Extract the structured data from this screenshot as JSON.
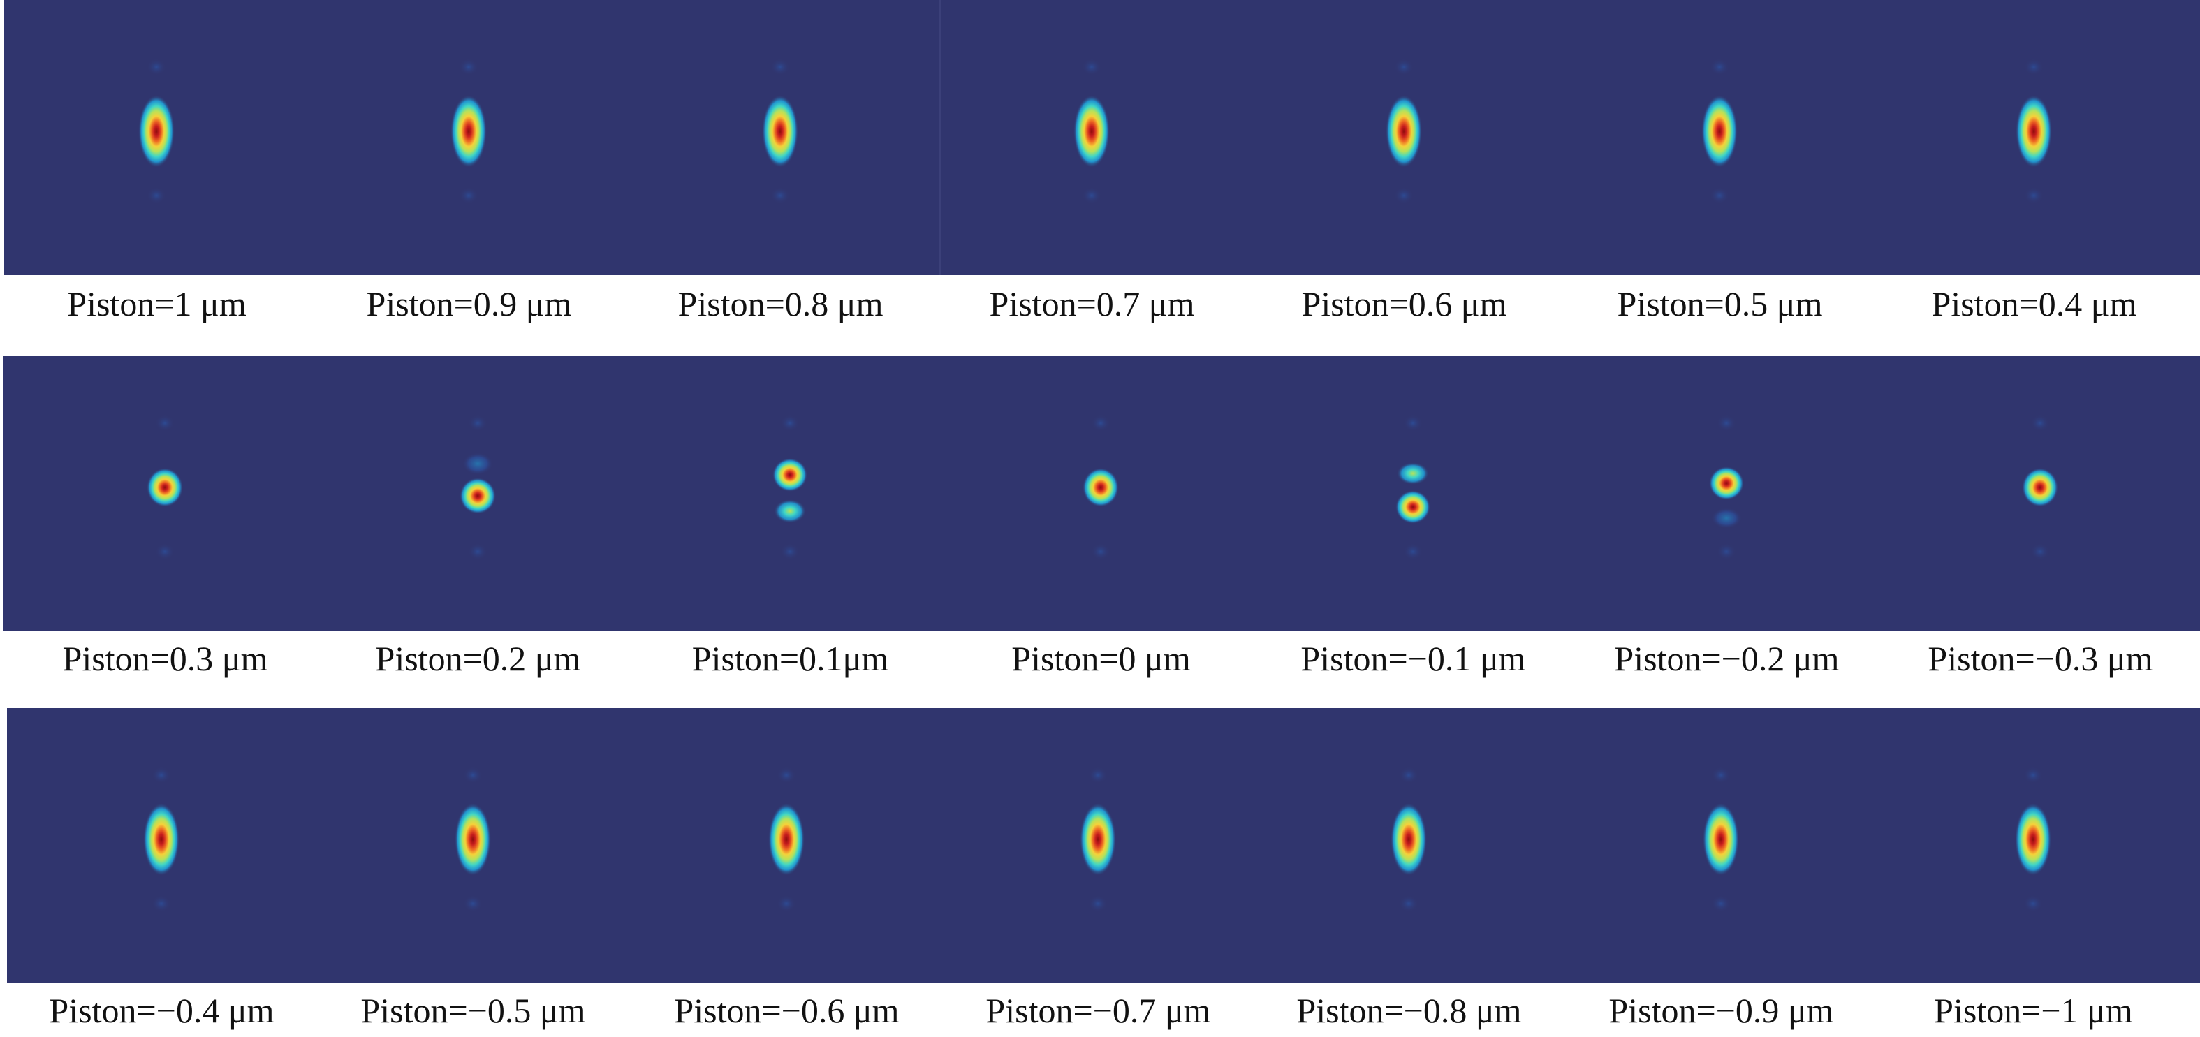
{
  "figure": {
    "background_color": "#30356e",
    "colormap": [
      "#30356e",
      "#2a5fb8",
      "#1fa6e0",
      "#3fd6c6",
      "#b6e25a",
      "#f4d23a",
      "#ee6a23",
      "#c81e1e",
      "#8e0c0c"
    ],
    "rows": [
      {
        "cells": [
          {
            "label": "Piston=1 μm",
            "pattern": "single-elongated"
          },
          {
            "label": "Piston=0.9 μm",
            "pattern": "single-elongated"
          },
          {
            "label": "Piston=0.8 μm",
            "pattern": "single-elongated"
          },
          {
            "label": "Piston=0.7 μm",
            "pattern": "single-elongated"
          },
          {
            "label": "Piston=0.6 μm",
            "pattern": "single-elongated"
          },
          {
            "label": "Piston=0.5 μm",
            "pattern": "single-elongated"
          },
          {
            "label": "Piston=0.4 μm",
            "pattern": "single-elongated"
          }
        ]
      },
      {
        "cells": [
          {
            "label": "Piston=0.3 μm",
            "pattern": "single-round"
          },
          {
            "label": "Piston=0.2 μm",
            "pattern": "main-below-faint-above"
          },
          {
            "label": "Piston=0.1μm",
            "pattern": "main-above-secondary-below"
          },
          {
            "label": "Piston=0 μm",
            "pattern": "single-round"
          },
          {
            "label": "Piston=−0.1 μm",
            "pattern": "main-below-secondary-above"
          },
          {
            "label": "Piston=−0.2 μm",
            "pattern": "main-above-faint-below"
          },
          {
            "label": "Piston=−0.3 μm",
            "pattern": "single-round"
          }
        ]
      },
      {
        "cells": [
          {
            "label": "Piston=−0.4 μm",
            "pattern": "single-elongated"
          },
          {
            "label": "Piston=−0.5 μm",
            "pattern": "single-elongated"
          },
          {
            "label": "Piston=−0.6 μm",
            "pattern": "single-elongated"
          },
          {
            "label": "Piston=−0.7 μm",
            "pattern": "single-elongated"
          },
          {
            "label": "Piston=−0.8 μm",
            "pattern": "single-elongated"
          },
          {
            "label": "Piston=−0.9 μm",
            "pattern": "single-elongated"
          },
          {
            "label": "Piston=−1 μm",
            "pattern": "single-elongated"
          }
        ]
      }
    ]
  }
}
